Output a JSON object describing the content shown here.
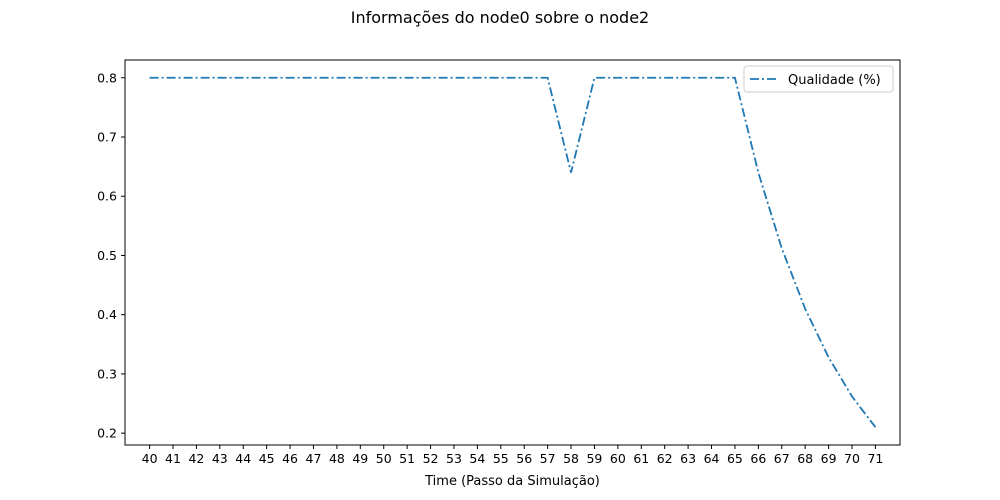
{
  "chart_data": {
    "type": "line",
    "title": "Informações do node0 sobre o node2",
    "xlabel": "Time (Passo da Simulação)",
    "ylabel": "",
    "x": [
      40,
      41,
      42,
      43,
      44,
      45,
      46,
      47,
      48,
      49,
      50,
      51,
      52,
      53,
      54,
      55,
      56,
      57,
      58,
      59,
      60,
      61,
      62,
      63,
      64,
      65,
      66,
      67,
      68,
      69,
      70,
      71
    ],
    "series": [
      {
        "name": "Qualidade (%)",
        "color": "#1f77b4",
        "line_style": "dash-dot",
        "values": [
          0.8,
          0.8,
          0.8,
          0.8,
          0.8,
          0.8,
          0.8,
          0.8,
          0.8,
          0.8,
          0.8,
          0.8,
          0.8,
          0.8,
          0.8,
          0.8,
          0.8,
          0.8,
          0.64,
          0.8,
          0.8,
          0.8,
          0.8,
          0.8,
          0.8,
          0.8,
          0.64,
          0.512,
          0.41,
          0.328,
          0.262,
          0.21
        ]
      }
    ],
    "xlim": [
      38.95,
      72.05
    ],
    "ylim": [
      0.18,
      0.83
    ],
    "yticks": [
      0.2,
      0.3,
      0.4,
      0.5,
      0.6,
      0.7,
      0.8
    ],
    "ytick_labels": [
      "0.2",
      "0.3",
      "0.4",
      "0.5",
      "0.6",
      "0.7",
      "0.8"
    ],
    "grid": false,
    "legend_position": "top-right"
  }
}
